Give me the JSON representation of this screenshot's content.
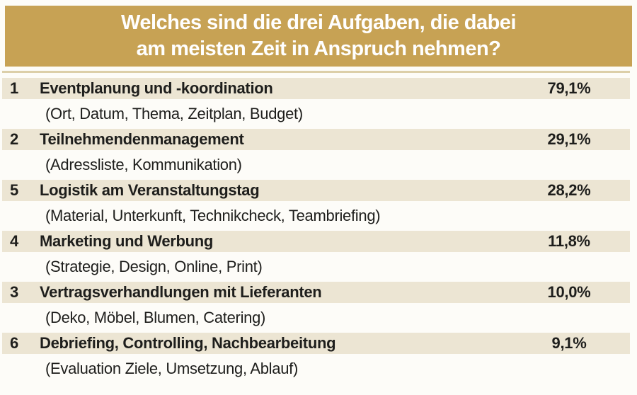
{
  "header": {
    "line1": "Welches sind die drei Aufgaben, die dabei",
    "line2": "am meisten Zeit in Anspruch nehmen?"
  },
  "colors": {
    "banner_gold": "#c7a254",
    "separator_tan": "#dccfa9",
    "row_band_beige": "#ece5d3",
    "title_text": "#ffffff",
    "body_text": "#1e1e1c",
    "background": "#fdfcf8"
  },
  "chart_data": {
    "type": "table",
    "title": "Welches sind die drei Aufgaben, die dabei am meisten Zeit in Anspruch nehmen?",
    "columns": [
      "rank",
      "task",
      "details",
      "percent"
    ],
    "legend_position": "none",
    "rows": [
      {
        "rank": "1",
        "task": "Eventplanung und -koordination",
        "details": "(Ort, Datum, Thema, Zeitplan, Budget)",
        "value": 79.1,
        "value_label": "79,1%"
      },
      {
        "rank": "2",
        "task": "Teilnehmendenmanagement",
        "details": "(Adressliste, Kommunikation)",
        "value": 29.1,
        "value_label": "29,1%"
      },
      {
        "rank": "5",
        "task": "Logistik am Veranstaltungstag",
        "details": "(Material, Unterkunft, Technikcheck, Teambriefing)",
        "value": 28.2,
        "value_label": "28,2%"
      },
      {
        "rank": "4",
        "task": "Marketing und Werbung",
        "details": "(Strategie, Design, Online, Print)",
        "value": 11.8,
        "value_label": "11,8%"
      },
      {
        "rank": "3",
        "task": "Vertragsverhandlungen mit Lieferanten",
        "details": "(Deko, Möbel, Blumen, Catering)",
        "value": 10.0,
        "value_label": "10,0%"
      },
      {
        "rank": "6",
        "task": "Debriefing, Controlling, Nachbearbeitung",
        "details": "(Evaluation Ziele, Umsetzung, Ablauf)",
        "value": 9.1,
        "value_label": "9,1%"
      }
    ]
  }
}
